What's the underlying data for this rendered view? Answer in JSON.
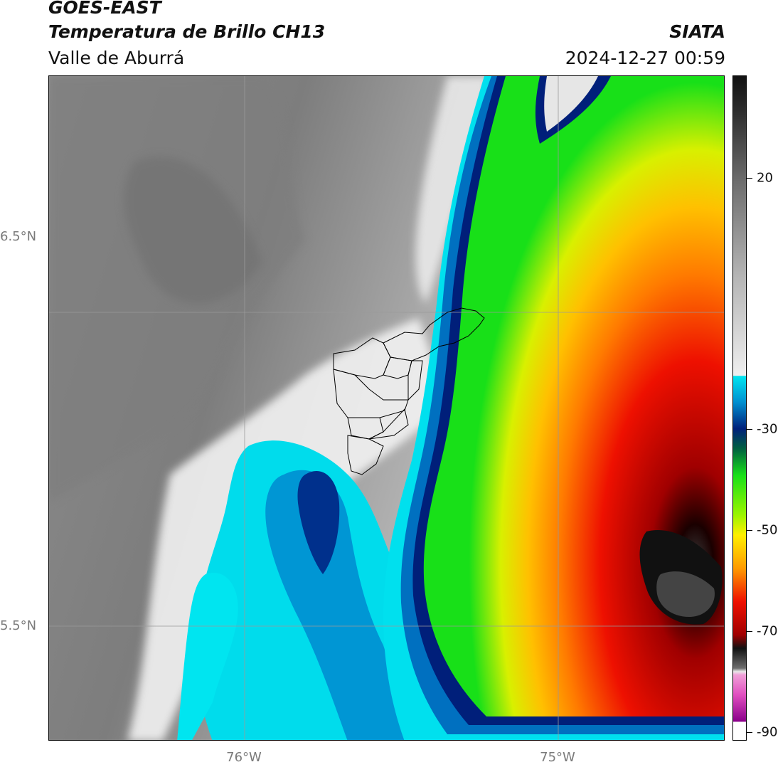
{
  "header": {
    "satellite": "GOES-EAST",
    "product": "Temperatura de Brillo CH13",
    "region": "Valle de Aburrá",
    "organization": "SIATA",
    "timestamp": "2024-12-27 00:59"
  },
  "map": {
    "latitude_labels": [
      "6.5°N",
      "5.5°N"
    ],
    "longitude_labels": [
      "76°W",
      "75°W"
    ]
  },
  "colorbar": {
    "tick_labels": [
      "20",
      "-30",
      "-50",
      "-70",
      "-90"
    ],
    "palette": {
      "gray_dark": "#6e6e6e",
      "gray_light": "#efefef",
      "cyan": "#00e5f0",
      "blue_mid": "#0090d0",
      "navy": "#00207a",
      "green": "#18e018",
      "lime": "#9cf500",
      "yellow": "#ffef00",
      "orange": "#ff9a00",
      "red": "#ee1000",
      "dark_red": "#a00000",
      "black": "#111111",
      "magenta": "#e050c0",
      "purple": "#8a008a"
    }
  }
}
